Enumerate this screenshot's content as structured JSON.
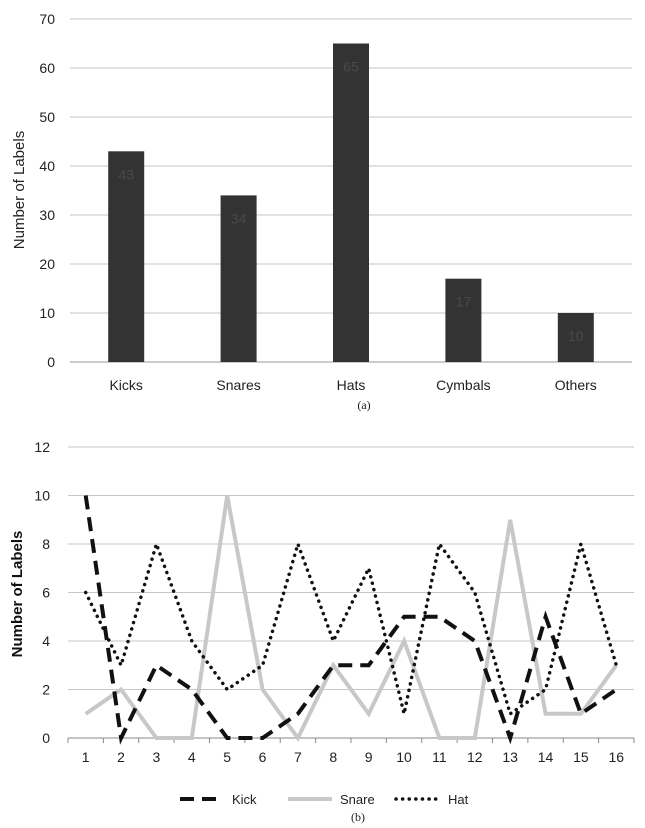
{
  "chart_data": [
    {
      "type": "bar",
      "categories": [
        "Kicks",
        "Snares",
        "Hats",
        "Cymbals",
        "Others"
      ],
      "values": [
        43,
        34,
        65,
        17,
        10
      ],
      "data_labels": [
        "43",
        "34",
        "65",
        "17",
        "10"
      ],
      "xlabel": "",
      "ylabel": "Number of Labels",
      "ylim": [
        0,
        70
      ],
      "yticks": [
        0,
        10,
        20,
        30,
        40,
        50,
        60,
        70
      ],
      "grid": "horizontal",
      "bar_color": "#333333",
      "caption": "(a)"
    },
    {
      "type": "line",
      "x": [
        1,
        2,
        3,
        4,
        5,
        6,
        7,
        8,
        9,
        10,
        11,
        12,
        13,
        14,
        15,
        16
      ],
      "series": [
        {
          "name": "Kick",
          "style": "dashed",
          "color": "#111111",
          "values": [
            10,
            0,
            3,
            2,
            0,
            0,
            1,
            3,
            3,
            5,
            5,
            4,
            0,
            5,
            1,
            2
          ]
        },
        {
          "name": "Snare",
          "style": "solid",
          "color": "#c8c8c8",
          "values": [
            1,
            2,
            0,
            0,
            10,
            2,
            0,
            3,
            1,
            4,
            0,
            0,
            9,
            1,
            1,
            3
          ]
        },
        {
          "name": "Hat",
          "style": "dotted",
          "color": "#111111",
          "values": [
            6,
            3,
            8,
            4,
            2,
            3,
            8,
            4,
            7,
            1,
            8,
            6,
            1,
            2,
            8,
            3
          ]
        }
      ],
      "xlabel": "",
      "ylabel": "Number of Labels",
      "ylim": [
        0,
        12
      ],
      "yticks": [
        0,
        2,
        4,
        6,
        8,
        10,
        12
      ],
      "grid": "horizontal",
      "legend_position": "bottom",
      "caption": "(b)"
    }
  ]
}
